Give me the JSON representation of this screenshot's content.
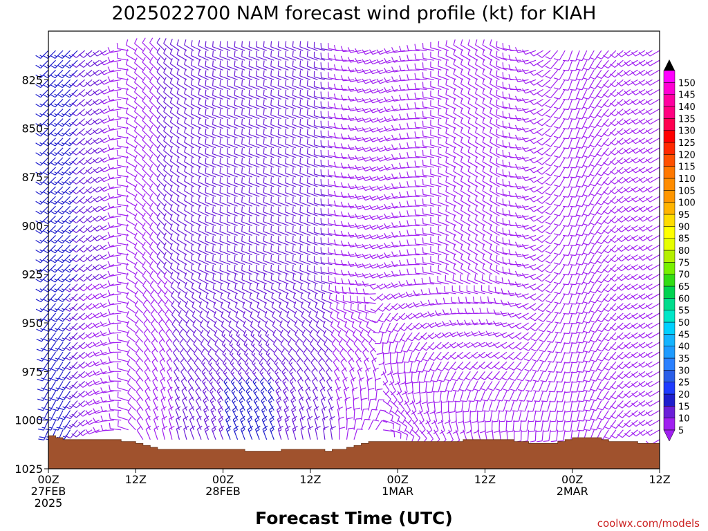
{
  "chart_data": {
    "type": "wind-barb-time-height",
    "title": "2025022700 NAM forecast wind profile (kt) for KIAH",
    "xlabel": "Forecast Time (UTC)",
    "credit": "coolwx.com/models",
    "y_axis": {
      "quantity": "pressure (hPa)",
      "range": [
        1025,
        800
      ],
      "inverted": true,
      "ticks": [
        "825",
        "850",
        "875",
        "900",
        "925",
        "950",
        "975",
        "1000",
        "1025"
      ],
      "tick_values": [
        825,
        850,
        875,
        900,
        925,
        950,
        975,
        1000,
        1025
      ]
    },
    "x_axis": {
      "quantity": "forecast hour",
      "range": [
        0,
        84
      ],
      "ticks": [
        {
          "hour": 0,
          "lines": [
            "00Z",
            "27FEB",
            "2025"
          ]
        },
        {
          "hour": 12,
          "lines": [
            "12Z"
          ]
        },
        {
          "hour": 24,
          "lines": [
            "00Z",
            "28FEB"
          ]
        },
        {
          "hour": 36,
          "lines": [
            "12Z"
          ]
        },
        {
          "hour": 48,
          "lines": [
            "00Z",
            "1MAR"
          ]
        },
        {
          "hour": 60,
          "lines": [
            "12Z"
          ]
        },
        {
          "hour": 72,
          "lines": [
            "00Z",
            "2MAR"
          ]
        },
        {
          "hour": 84,
          "lines": [
            "12Z"
          ]
        }
      ]
    },
    "colorbar": {
      "units": "kt",
      "values": [
        5,
        10,
        15,
        20,
        25,
        30,
        35,
        40,
        45,
        50,
        55,
        60,
        65,
        70,
        75,
        80,
        85,
        90,
        95,
        100,
        105,
        110,
        115,
        120,
        125,
        130,
        135,
        140,
        145,
        150
      ],
      "colors": [
        "#a020f0",
        "#6b1fd8",
        "#1e1ecc",
        "#1e3cff",
        "#2a5ee8",
        "#2a80ff",
        "#1e9bff",
        "#14b4ff",
        "#00d0ff",
        "#00e6c8",
        "#00dc8c",
        "#00d250",
        "#32dc14",
        "#78f000",
        "#b4f000",
        "#e6ff00",
        "#ffff00",
        "#ffdc00",
        "#ffb400",
        "#ff9600",
        "#ff8c00",
        "#ff7800",
        "#ff5000",
        "#ff2800",
        "#ff0000",
        "#ff0050",
        "#ff0080",
        "#ff00a0",
        "#ff00d2",
        "#ff00ff"
      ]
    },
    "terrain": {
      "color": "#a0522d",
      "surface_pressure": {
        "hours": [
          0,
          1,
          2,
          3,
          4,
          5,
          6,
          7,
          8,
          9,
          10,
          11,
          12,
          13,
          14,
          15,
          16,
          17,
          18,
          19,
          20,
          21,
          22,
          23,
          24,
          25,
          26,
          27,
          28,
          29,
          30,
          31,
          32,
          33,
          34,
          35,
          36,
          37,
          38,
          39,
          40,
          41,
          42,
          43,
          44,
          45,
          46,
          47,
          48,
          49,
          50,
          51,
          52,
          53,
          54,
          55,
          56,
          57,
          58,
          59,
          60,
          61,
          62,
          63,
          64,
          65,
          66,
          67,
          68,
          69,
          70,
          71,
          72,
          73,
          74,
          75,
          76,
          77,
          78,
          79,
          80,
          81,
          82,
          83,
          84
        ],
        "values": [
          1008,
          1009,
          1010,
          1010,
          1010,
          1010,
          1010,
          1010,
          1010,
          1010,
          1011,
          1011,
          1012,
          1013,
          1014,
          1015,
          1015,
          1015,
          1015,
          1015,
          1015,
          1015,
          1015,
          1015,
          1015,
          1015,
          1015,
          1016,
          1016,
          1016,
          1016,
          1016,
          1015,
          1015,
          1015,
          1015,
          1015,
          1015,
          1016,
          1015,
          1015,
          1014,
          1013,
          1012,
          1011,
          1011,
          1011,
          1011,
          1011,
          1011,
          1011,
          1011,
          1011,
          1011,
          1011,
          1011,
          1011,
          1010,
          1010,
          1010,
          1010,
          1010,
          1010,
          1010,
          1011,
          1011,
          1012,
          1012,
          1012,
          1012,
          1011,
          1010,
          1009,
          1009,
          1009,
          1009,
          1010,
          1011,
          1011,
          1011,
          1011,
          1012,
          1012,
          1012,
          1013
        ]
      }
    },
    "barbs": {
      "level_values": [
        810,
        815,
        820,
        825,
        830,
        835,
        840,
        845,
        850,
        855,
        860,
        865,
        870,
        875,
        880,
        885,
        890,
        895,
        900,
        905,
        910,
        915,
        920,
        925,
        930,
        935,
        940,
        945,
        950,
        955,
        960,
        965,
        970,
        975,
        980,
        985,
        990,
        995,
        1000,
        1005,
        1010,
        1015,
        1020
      ],
      "columns": [
        {
          "hour": 0,
          "dir": 225,
          "speed": 15,
          "low_dir": 200,
          "low_speed": 18
        },
        {
          "hour": 1,
          "dir": 225,
          "speed": 15,
          "low_dir": 200,
          "low_speed": 18
        },
        {
          "hour": 2,
          "dir": 225,
          "speed": 15,
          "low_dir": 200,
          "low_speed": 15
        },
        {
          "hour": 3,
          "dir": 225,
          "speed": 15,
          "low_dir": 210,
          "low_speed": 15
        },
        {
          "hour": 4,
          "dir": 225,
          "speed": 15,
          "low_dir": 220,
          "low_speed": 12
        },
        {
          "hour": 5,
          "dir": 230,
          "speed": 12,
          "low_dir": 230,
          "low_speed": 10
        },
        {
          "hour": 6,
          "dir": 230,
          "speed": 10,
          "low_dir": 240,
          "low_speed": 8
        },
        {
          "hour": 7,
          "dir": 235,
          "speed": 10,
          "low_dir": 250,
          "low_speed": 8
        },
        {
          "hour": 8,
          "dir": 240,
          "speed": 10,
          "low_dir": 260,
          "low_speed": 8
        },
        {
          "hour": 9,
          "dir": 245,
          "speed": 8,
          "low_dir": 270,
          "low_speed": 8
        },
        {
          "hour": 10,
          "dir": 260,
          "speed": 8,
          "low_dir": 280,
          "low_speed": 8
        },
        {
          "hour": 11,
          "dir": 280,
          "speed": 8,
          "low_dir": 290,
          "low_speed": 8
        },
        {
          "hour": 12,
          "dir": 300,
          "speed": 8,
          "low_dir": 320,
          "low_speed": 8
        },
        {
          "hour": 13,
          "dir": 310,
          "speed": 8,
          "low_dir": 330,
          "low_speed": 8
        },
        {
          "hour": 14,
          "dir": 315,
          "speed": 8,
          "low_dir": 340,
          "low_speed": 8
        },
        {
          "hour": 15,
          "dir": 315,
          "speed": 8,
          "low_dir": 345,
          "low_speed": 8
        },
        {
          "hour": 16,
          "dir": 315,
          "speed": 10,
          "low_dir": 350,
          "low_speed": 8
        },
        {
          "hour": 17,
          "dir": 310,
          "speed": 10,
          "low_dir": 350,
          "low_speed": 8
        },
        {
          "hour": 18,
          "dir": 305,
          "speed": 10,
          "low_dir": 350,
          "low_speed": 10
        },
        {
          "hour": 19,
          "dir": 300,
          "speed": 10,
          "low_dir": 350,
          "low_speed": 10
        },
        {
          "hour": 20,
          "dir": 300,
          "speed": 10,
          "low_dir": 345,
          "low_speed": 12
        },
        {
          "hour": 21,
          "dir": 295,
          "speed": 10,
          "low_dir": 345,
          "low_speed": 12
        },
        {
          "hour": 22,
          "dir": 295,
          "speed": 10,
          "low_dir": 345,
          "low_speed": 15
        },
        {
          "hour": 23,
          "dir": 290,
          "speed": 10,
          "low_dir": 345,
          "low_speed": 15
        },
        {
          "hour": 24,
          "dir": 290,
          "speed": 10,
          "low_dir": 345,
          "low_speed": 15
        },
        {
          "hour": 25,
          "dir": 290,
          "speed": 10,
          "low_dir": 345,
          "low_speed": 18
        },
        {
          "hour": 26,
          "dir": 290,
          "speed": 10,
          "low_dir": 345,
          "low_speed": 18
        },
        {
          "hour": 27,
          "dir": 290,
          "speed": 10,
          "low_dir": 345,
          "low_speed": 18
        },
        {
          "hour": 28,
          "dir": 290,
          "speed": 10,
          "low_dir": 345,
          "low_speed": 18
        },
        {
          "hour": 29,
          "dir": 290,
          "speed": 10,
          "low_dir": 345,
          "low_speed": 18
        },
        {
          "hour": 30,
          "dir": 290,
          "speed": 10,
          "low_dir": 345,
          "low_speed": 18
        },
        {
          "hour": 31,
          "dir": 290,
          "speed": 10,
          "low_dir": 345,
          "low_speed": 18
        },
        {
          "hour": 32,
          "dir": 290,
          "speed": 10,
          "low_dir": 350,
          "low_speed": 15
        },
        {
          "hour": 33,
          "dir": 290,
          "speed": 10,
          "low_dir": 350,
          "low_speed": 15
        },
        {
          "hour": 34,
          "dir": 290,
          "speed": 10,
          "low_dir": 350,
          "low_speed": 15
        },
        {
          "hour": 35,
          "dir": 290,
          "speed": 10,
          "low_dir": 355,
          "low_speed": 12
        },
        {
          "hour": 36,
          "dir": 290,
          "speed": 10,
          "low_dir": 355,
          "low_speed": 12
        },
        {
          "hour": 37,
          "dir": 290,
          "speed": 10,
          "low_dir": 355,
          "low_speed": 10
        },
        {
          "hour": 38,
          "dir": 285,
          "speed": 10,
          "low_dir": 360,
          "low_speed": 10
        },
        {
          "hour": 39,
          "dir": 280,
          "speed": 10,
          "low_dir": 360,
          "low_speed": 10
        },
        {
          "hour": 40,
          "dir": 280,
          "speed": 8,
          "low_dir": 10,
          "low_speed": 8
        },
        {
          "hour": 41,
          "dir": 270,
          "speed": 8,
          "low_dir": 20,
          "low_speed": 8
        },
        {
          "hour": 42,
          "dir": 265,
          "speed": 8,
          "low_dir": 30,
          "low_speed": 8
        },
        {
          "hour": 43,
          "dir": 260,
          "speed": 8,
          "low_dir": 40,
          "low_speed": 8
        },
        {
          "hour": 44,
          "dir": 255,
          "speed": 8,
          "low_dir": 50,
          "low_speed": 8
        },
        {
          "hour": 45,
          "dir": 250,
          "speed": 8,
          "low_dir": 60,
          "low_speed": 8
        },
        {
          "hour": 46,
          "dir": 250,
          "speed": 8,
          "low_dir": 70,
          "low_speed": 8
        },
        {
          "hour": 47,
          "dir": 250,
          "speed": 8,
          "low_dir": 80,
          "low_speed": 8
        },
        {
          "hour": 48,
          "dir": 255,
          "speed": 8,
          "low_dir": 90,
          "low_speed": 8
        },
        {
          "hour": 49,
          "dir": 260,
          "speed": 8,
          "low_dir": 100,
          "low_speed": 8
        },
        {
          "hour": 50,
          "dir": 265,
          "speed": 8,
          "low_dir": 110,
          "low_speed": 8
        },
        {
          "hour": 51,
          "dir": 270,
          "speed": 8,
          "low_dir": 115,
          "low_speed": 8
        },
        {
          "hour": 52,
          "dir": 275,
          "speed": 8,
          "low_dir": 120,
          "low_speed": 8
        },
        {
          "hour": 53,
          "dir": 280,
          "speed": 8,
          "low_dir": 125,
          "low_speed": 8
        },
        {
          "hour": 54,
          "dir": 285,
          "speed": 8,
          "low_dir": 130,
          "low_speed": 8
        },
        {
          "hour": 55,
          "dir": 290,
          "speed": 8,
          "low_dir": 130,
          "low_speed": 8
        },
        {
          "hour": 56,
          "dir": 295,
          "speed": 8,
          "low_dir": 135,
          "low_speed": 8
        },
        {
          "hour": 57,
          "dir": 300,
          "speed": 8,
          "low_dir": 135,
          "low_speed": 8
        },
        {
          "hour": 58,
          "dir": 300,
          "speed": 8,
          "low_dir": 140,
          "low_speed": 8
        },
        {
          "hour": 59,
          "dir": 300,
          "speed": 8,
          "low_dir": 140,
          "low_speed": 8
        },
        {
          "hour": 60,
          "dir": 300,
          "speed": 8,
          "low_dir": 145,
          "low_speed": 8
        },
        {
          "hour": 61,
          "dir": 300,
          "speed": 8,
          "low_dir": 150,
          "low_speed": 8
        },
        {
          "hour": 62,
          "dir": 300,
          "speed": 8,
          "low_dir": 150,
          "low_speed": 8
        },
        {
          "hour": 63,
          "dir": 290,
          "speed": 8,
          "low_dir": 155,
          "low_speed": 8
        },
        {
          "hour": 64,
          "dir": 280,
          "speed": 8,
          "low_dir": 160,
          "low_speed": 8
        },
        {
          "hour": 65,
          "dir": 270,
          "speed": 8,
          "low_dir": 165,
          "low_speed": 8
        },
        {
          "hour": 66,
          "dir": 260,
          "speed": 8,
          "low_dir": 170,
          "low_speed": 8
        },
        {
          "hour": 67,
          "dir": 250,
          "speed": 8,
          "low_dir": 170,
          "low_speed": 8
        },
        {
          "hour": 68,
          "dir": 240,
          "speed": 8,
          "low_dir": 175,
          "low_speed": 8
        },
        {
          "hour": 69,
          "dir": 230,
          "speed": 8,
          "low_dir": 180,
          "low_speed": 8
        },
        {
          "hour": 70,
          "dir": 220,
          "speed": 8,
          "low_dir": 180,
          "low_speed": 8
        },
        {
          "hour": 71,
          "dir": 210,
          "speed": 8,
          "low_dir": 185,
          "low_speed": 8
        },
        {
          "hour": 72,
          "dir": 200,
          "speed": 8,
          "low_dir": 185,
          "low_speed": 8
        },
        {
          "hour": 73,
          "dir": 200,
          "speed": 8,
          "low_dir": 190,
          "low_speed": 8
        },
        {
          "hour": 74,
          "dir": 205,
          "speed": 8,
          "low_dir": 195,
          "low_speed": 8
        },
        {
          "hour": 75,
          "dir": 210,
          "speed": 8,
          "low_dir": 200,
          "low_speed": 8
        },
        {
          "hour": 76,
          "dir": 215,
          "speed": 8,
          "low_dir": 205,
          "low_speed": 8
        },
        {
          "hour": 77,
          "dir": 220,
          "speed": 8,
          "low_dir": 210,
          "low_speed": 8
        },
        {
          "hour": 78,
          "dir": 225,
          "speed": 8,
          "low_dir": 215,
          "low_speed": 8
        },
        {
          "hour": 79,
          "dir": 230,
          "speed": 8,
          "low_dir": 220,
          "low_speed": 8
        },
        {
          "hour": 80,
          "dir": 235,
          "speed": 8,
          "low_dir": 225,
          "low_speed": 8
        },
        {
          "hour": 81,
          "dir": 240,
          "speed": 8,
          "low_dir": 230,
          "low_speed": 8
        },
        {
          "hour": 82,
          "dir": 240,
          "speed": 8,
          "low_dir": 235,
          "low_speed": 8
        },
        {
          "hour": 83,
          "dir": 240,
          "speed": 8,
          "low_dir": 240,
          "low_speed": 8
        },
        {
          "hour": 84,
          "dir": 240,
          "speed": 8,
          "low_dir": 240,
          "low_speed": 8
        }
      ]
    }
  }
}
